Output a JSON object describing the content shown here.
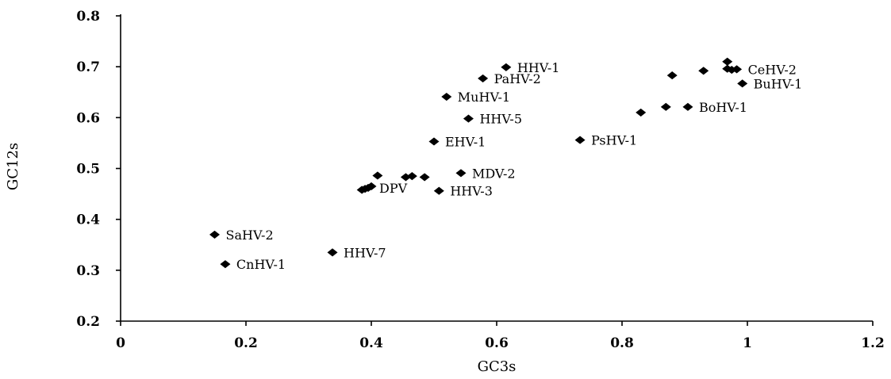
{
  "chart_data": {
    "type": "scatter",
    "title": "",
    "xlabel": "GC3s",
    "ylabel": "GC12s",
    "xlim": [
      0,
      1.2
    ],
    "ylim": [
      0.2,
      0.8
    ],
    "xticks": [
      0,
      0.2,
      0.4,
      0.6,
      0.8,
      1,
      1.2
    ],
    "xtick_labels": [
      "0",
      "0.2",
      "0.4",
      "0.6",
      "0.8",
      "1",
      "1.2"
    ],
    "yticks": [
      0.2,
      0.3,
      0.4,
      0.5,
      0.6,
      0.7,
      0.8
    ],
    "ytick_labels": [
      "0.2",
      "0.3",
      "0.4",
      "0.5",
      "0.6",
      "0.7",
      "0.8"
    ],
    "grid": false,
    "marker": "diamond",
    "marker_color": "#000000",
    "points": [
      {
        "x": 0.615,
        "y": 0.699,
        "label": "HHV-1"
      },
      {
        "x": 0.578,
        "y": 0.677,
        "label": "PaHV-2"
      },
      {
        "x": 0.52,
        "y": 0.641,
        "label": "MuHV-1"
      },
      {
        "x": 0.555,
        "y": 0.598,
        "label": "HHV-5"
      },
      {
        "x": 0.5,
        "y": 0.553,
        "label": "EHV-1"
      },
      {
        "x": 0.733,
        "y": 0.556,
        "label": "PsHV-1"
      },
      {
        "x": 0.543,
        "y": 0.491,
        "label": "MDV-2"
      },
      {
        "x": 0.395,
        "y": 0.462,
        "label": "DPV"
      },
      {
        "x": 0.508,
        "y": 0.456,
        "label": "HHV-3"
      },
      {
        "x": 0.15,
        "y": 0.37,
        "label": "SaHV-2"
      },
      {
        "x": 0.338,
        "y": 0.335,
        "label": "HHV-7"
      },
      {
        "x": 0.167,
        "y": 0.312,
        "label": "CnHV-1"
      },
      {
        "x": 0.983,
        "y": 0.695,
        "label": "CeHV-2"
      },
      {
        "x": 0.992,
        "y": 0.667,
        "label": "BuHV-1"
      },
      {
        "x": 0.905,
        "y": 0.621,
        "label": "BoHV-1"
      },
      {
        "x": 0.41,
        "y": 0.486
      },
      {
        "x": 0.455,
        "y": 0.483
      },
      {
        "x": 0.465,
        "y": 0.485
      },
      {
        "x": 0.485,
        "y": 0.483
      },
      {
        "x": 0.385,
        "y": 0.458
      },
      {
        "x": 0.39,
        "y": 0.46
      },
      {
        "x": 0.4,
        "y": 0.465
      },
      {
        "x": 0.968,
        "y": 0.71
      },
      {
        "x": 0.968,
        "y": 0.696
      },
      {
        "x": 0.975,
        "y": 0.694
      },
      {
        "x": 0.93,
        "y": 0.692
      },
      {
        "x": 0.88,
        "y": 0.683
      },
      {
        "x": 0.87,
        "y": 0.621
      },
      {
        "x": 0.83,
        "y": 0.61
      }
    ]
  }
}
